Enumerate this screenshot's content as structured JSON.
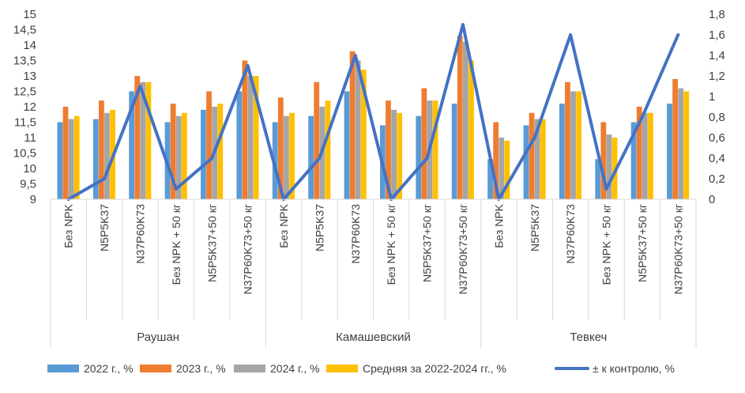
{
  "chart_data": {
    "type": "bar",
    "title": "",
    "xlabel": "",
    "ylabel": "",
    "ylim": [
      9,
      15
    ],
    "y_ticks": [
      "9",
      "9,5",
      "10",
      "10,5",
      "11",
      "11,5",
      "12",
      "12,5",
      "13",
      "13,5",
      "14",
      "14,5",
      "15"
    ],
    "y2lim": [
      0,
      1.8
    ],
    "y2_ticks": [
      "0",
      "0,2",
      "0,4",
      "0,6",
      "0,8",
      "1",
      "1,2",
      "1,4",
      "1,6",
      "1,8"
    ],
    "grid": false,
    "legend_position": "bottom",
    "groups": [
      "Раушан",
      "Камашевский",
      "Тевкеч"
    ],
    "categories": [
      "Без NPK",
      "N5P5K37",
      "N37P60K73",
      "Без NPK + 50 кг",
      "N5P5K37+50 кг",
      "N37P60K73+50 кг",
      "Без NPK",
      "N5P5K37",
      "N37P60K73",
      "Без NPK + 50 кг",
      "N5P5K37+50 кг",
      "N37P60K73+50 кг",
      "Без NPK",
      "N5P5K37",
      "N37P60K73",
      "Без NPK + 50 кг",
      "N5P5K37+50 кг",
      "N37P60K73+50 кг"
    ],
    "series": [
      {
        "name": "2022 г., %",
        "color": "#5b9bd5",
        "type": "bar",
        "values": [
          11.5,
          11.6,
          12.5,
          11.5,
          11.9,
          12.5,
          11.5,
          11.7,
          12.5,
          11.4,
          11.7,
          12.1,
          10.3,
          11.4,
          12.1,
          10.3,
          11.5,
          12.1
        ]
      },
      {
        "name": "2023 г., %",
        "color": "#ed7d31",
        "type": "bar",
        "values": [
          12.0,
          12.2,
          13.0,
          12.1,
          12.5,
          13.5,
          12.3,
          12.8,
          13.8,
          12.2,
          12.6,
          14.3,
          11.5,
          11.8,
          12.8,
          11.5,
          12.0,
          12.9
        ]
      },
      {
        "name": "2024 г., %",
        "color": "#a5a5a5",
        "type": "bar",
        "values": [
          11.6,
          11.8,
          12.8,
          11.7,
          12.0,
          13.0,
          11.7,
          12.0,
          13.5,
          11.9,
          12.2,
          14.1,
          11.0,
          11.6,
          12.5,
          11.1,
          11.8,
          12.6
        ]
      },
      {
        "name": "Средняя за 2022-2024 гг., %",
        "color": "#ffc000",
        "type": "bar",
        "values": [
          11.7,
          11.9,
          12.8,
          11.8,
          12.1,
          13.0,
          11.8,
          12.2,
          13.2,
          11.8,
          12.2,
          13.5,
          10.9,
          11.6,
          12.5,
          11.0,
          11.8,
          12.5
        ]
      },
      {
        "name": "± к контролю, %",
        "color": "#4472c4",
        "type": "line",
        "axis": "secondary",
        "values": [
          0,
          0.2,
          1.1,
          0.1,
          0.4,
          1.3,
          0,
          0.4,
          1.4,
          0,
          0.4,
          1.7,
          0,
          0.6,
          1.6,
          0.1,
          0.8,
          1.6
        ]
      }
    ]
  }
}
